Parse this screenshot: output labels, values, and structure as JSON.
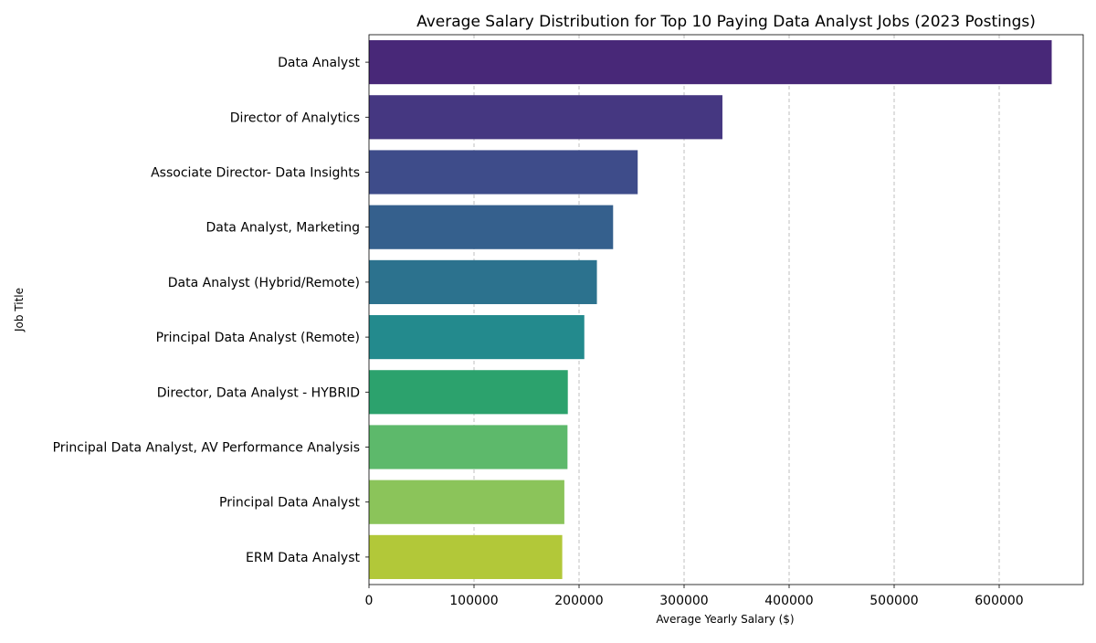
{
  "chart_data": {
    "type": "bar",
    "orientation": "horizontal",
    "title": "Average Salary Distribution for Top 10 Paying Data Analyst Jobs (2023 Postings)",
    "xlabel": "Average Yearly Salary ($)",
    "ylabel": "Job Title",
    "xlim": [
      0,
      680000
    ],
    "x_ticks": [
      0,
      100000,
      200000,
      300000,
      400000,
      500000,
      600000
    ],
    "x_tick_labels": [
      "0",
      "100000",
      "200000",
      "300000",
      "400000",
      "500000",
      "600000"
    ],
    "grid": "x-axis, dashed",
    "categories": [
      "Data Analyst",
      "Director of Analytics",
      "Associate Director- Data Insights",
      "Data Analyst, Marketing",
      "Data Analyst (Hybrid/Remote)",
      "Principal Data Analyst (Remote)",
      "Director, Data Analyst - HYBRID",
      "Principal Data Analyst, AV Performance Analysis",
      "Principal Data Analyst",
      "ERM Data Analyst"
    ],
    "values": [
      650000,
      336500,
      255830,
      232423,
      217000,
      205000,
      189309,
      189000,
      186000,
      184000
    ],
    "colors": [
      "#482878",
      "#453781",
      "#3e4c8a",
      "#35608d",
      "#2c728e",
      "#238a8d",
      "#2ca26d",
      "#5db96b",
      "#8bc45a",
      "#b2c839"
    ]
  }
}
